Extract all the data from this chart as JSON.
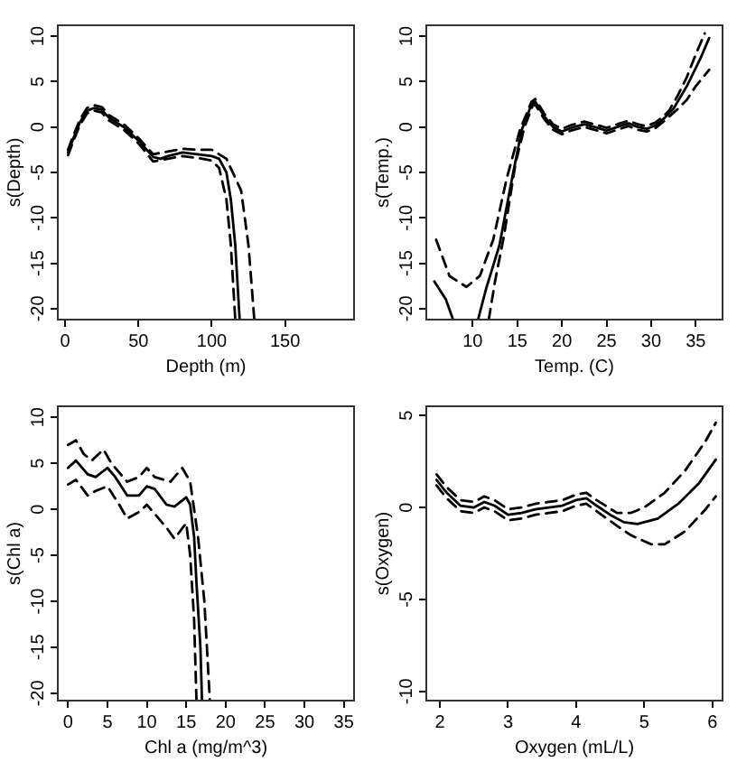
{
  "chart_data": [
    {
      "type": "line",
      "xlabel": "Depth (m)",
      "ylabel": "s(Depth)",
      "xlim": [
        -5,
        197
      ],
      "ylim": [
        -21.2,
        11.2
      ],
      "xticks": [
        0,
        50,
        100,
        150
      ],
      "yticks": [
        -20,
        -15,
        -10,
        -5,
        0,
        5,
        10
      ],
      "grid": false,
      "legend": false,
      "marker": "none",
      "series": [
        {
          "color": "#000000",
          "line_style": "solid",
          "x": [
            2,
            5,
            10,
            15,
            20,
            25,
            30,
            40,
            50,
            60,
            65,
            70,
            80,
            90,
            100,
            105,
            110,
            113,
            116,
            119
          ],
          "values": [
            -2.8,
            -1.5,
            0.5,
            1.8,
            2.1,
            1.9,
            1,
            0,
            -1.5,
            -3.3,
            -3.5,
            -3.2,
            -2.8,
            -3,
            -3.2,
            -3.5,
            -5,
            -8,
            -13,
            -21.2
          ]
        },
        {
          "color": "#000000",
          "line_style": "dashed",
          "x": [
            2,
            5,
            10,
            15,
            20,
            25,
            30,
            40,
            50,
            60,
            70,
            80,
            90,
            100,
            110,
            120,
            125,
            129
          ],
          "values": [
            -2.5,
            -1.2,
            0.8,
            2.1,
            2.4,
            2.2,
            1.3,
            0.3,
            -1.2,
            -3,
            -2.7,
            -2.4,
            -2.5,
            -2.5,
            -3.5,
            -7,
            -13,
            -21.2
          ]
        },
        {
          "color": "#000000",
          "line_style": "dashed",
          "x": [
            2,
            5,
            10,
            15,
            20,
            25,
            30,
            40,
            50,
            60,
            70,
            80,
            90,
            100,
            105,
            110,
            113,
            116
          ],
          "values": [
            -3.1,
            -1.8,
            0.2,
            1.5,
            1.8,
            1.6,
            0.7,
            -0.3,
            -1.8,
            -3.8,
            -3.5,
            -3.2,
            -3.4,
            -3.7,
            -4.5,
            -8,
            -13,
            -21.2
          ]
        }
      ]
    },
    {
      "type": "line",
      "xlabel": "Temp. (C)",
      "ylabel": "s(Temp.)",
      "xlim": [
        4.8,
        38
      ],
      "ylim": [
        -21.2,
        11.2
      ],
      "xticks": [
        10,
        15,
        20,
        25,
        30,
        35
      ],
      "yticks": [
        -20,
        -15,
        -10,
        -5,
        0,
        5,
        10
      ],
      "grid": false,
      "legend": false,
      "marker": "none",
      "series": [
        {
          "color": "#000000",
          "line_style": "solid",
          "x": [
            5.7,
            7,
            7.8
          ],
          "values": [
            -17,
            -19,
            -21.2
          ]
        },
        {
          "color": "#000000",
          "line_style": "solid",
          "x": [
            10.6,
            11.5,
            13,
            14.4,
            15.5,
            16.6,
            17,
            18,
            19,
            20,
            21,
            22.5,
            24,
            25,
            26.5,
            27.5,
            28.5,
            29.5,
            30.5,
            31.5,
            32.5,
            34,
            35.5,
            36.5
          ],
          "values": [
            -21.2,
            -17.8,
            -13,
            -5.7,
            -0.3,
            2.5,
            2.8,
            1.2,
            0,
            -0.5,
            -0.1,
            0.3,
            -0.1,
            -0.4,
            0.1,
            0.4,
            0,
            -0.2,
            0.2,
            1,
            2,
            4.5,
            7.5,
            9.8
          ]
        },
        {
          "color": "#000000",
          "line_style": "dashed",
          "x": [
            5.9,
            7.4,
            9.3,
            10.8,
            12.3,
            13.8,
            15.3,
            16.6,
            17,
            18,
            19,
            20,
            21,
            22.5,
            24,
            25,
            26.5,
            27.5,
            28.5,
            29.5,
            30.5,
            31.5,
            32,
            33,
            34,
            35,
            36
          ],
          "values": [
            -12.4,
            -16.4,
            -17.6,
            -16.4,
            -12.4,
            -5.7,
            -0.3,
            2.8,
            3.1,
            1.5,
            0.3,
            -0.2,
            0.2,
            0.6,
            0.2,
            -0.1,
            0.4,
            0.7,
            0.3,
            0.1,
            0.5,
            1.3,
            1.8,
            3.5,
            5.5,
            8,
            10.3
          ]
        },
        {
          "color": "#000000",
          "line_style": "dashed",
          "x": [
            11.8,
            12.5,
            13.5,
            14.8,
            15.8,
            16.7,
            17,
            18,
            19,
            20,
            21,
            22.5,
            24,
            25,
            26.5,
            27.5,
            28.5,
            29.5,
            30.5,
            31.5,
            33,
            34,
            35,
            36.5
          ],
          "values": [
            -21.2,
            -17,
            -12,
            -4,
            0,
            2.3,
            2.5,
            0.9,
            -0.3,
            -0.8,
            -0.4,
            0,
            -0.4,
            -0.7,
            -0.2,
            0.1,
            -0.3,
            -0.5,
            -0.1,
            0.7,
            2,
            3,
            4.5,
            6.3
          ]
        }
      ]
    },
    {
      "type": "line",
      "xlabel": "Chl a (mg/m^3)",
      "ylabel": "s(Chl a)",
      "xlim": [
        -1.3,
        36.3
      ],
      "ylim": [
        -20.8,
        11.2
      ],
      "xticks": [
        0,
        5,
        10,
        15,
        20,
        25,
        30,
        35
      ],
      "yticks": [
        -20,
        -15,
        -10,
        -5,
        0,
        5,
        10
      ],
      "grid": false,
      "legend": false,
      "marker": "none",
      "series": [
        {
          "color": "#000000",
          "line_style": "solid",
          "x": [
            0,
            1,
            2.5,
            3.5,
            5,
            6,
            7.5,
            9,
            10,
            11,
            12.5,
            13.5,
            15,
            15.5,
            16,
            16.3,
            16.8,
            17
          ],
          "values": [
            4.5,
            5.3,
            3.8,
            3.5,
            4.5,
            3.5,
            1.5,
            1.5,
            2.5,
            2.2,
            0.5,
            0.3,
            1.3,
            0.5,
            -3,
            -8,
            -15,
            -20.8
          ]
        },
        {
          "color": "#000000",
          "line_style": "dashed",
          "x": [
            0,
            1,
            2,
            3,
            4.5,
            5.5,
            7.5,
            9,
            10,
            11,
            13,
            14.5,
            15.5,
            16.5,
            17.3,
            18
          ],
          "values": [
            7,
            7.5,
            6,
            5.3,
            6.5,
            5,
            3,
            3.5,
            4.5,
            3.5,
            3,
            4.5,
            3,
            -3,
            -10,
            -20.8
          ]
        },
        {
          "color": "#000000",
          "line_style": "dashed",
          "x": [
            0,
            1,
            2.5,
            3.5,
            5,
            6.5,
            7.5,
            9,
            10,
            11,
            12.5,
            13.5,
            15,
            15.5,
            16,
            16.3
          ],
          "values": [
            2.7,
            3.2,
            1.5,
            2,
            2.5,
            0.5,
            -1,
            -0.3,
            0.5,
            -0.5,
            -2,
            -3.2,
            -1.5,
            -5,
            -12,
            -20.8
          ]
        }
      ]
    },
    {
      "type": "line",
      "xlabel": "Oxygen (mL/L)",
      "ylabel": "s(Oxygen)",
      "xlim": [
        1.8,
        6.15
      ],
      "ylim": [
        -10.5,
        5.5
      ],
      "xticks": [
        2,
        3,
        4,
        5,
        6
      ],
      "yticks": [
        -10,
        -5,
        0,
        5
      ],
      "grid": false,
      "legend": false,
      "marker": "none",
      "series": [
        {
          "color": "#000000",
          "line_style": "solid",
          "x": [
            1.95,
            2.1,
            2.3,
            2.5,
            2.65,
            2.8,
            3,
            3.2,
            3.4,
            3.6,
            3.8,
            4,
            4.15,
            4.3,
            4.5,
            4.7,
            4.9,
            5.2,
            5.5,
            5.8,
            6.05
          ],
          "values": [
            1.5,
            0.8,
            0.1,
            0,
            0.3,
            0.1,
            -0.4,
            -0.3,
            -0.1,
            0,
            0.1,
            0.4,
            0.5,
            0.1,
            -0.4,
            -0.8,
            -0.9,
            -0.6,
            0.2,
            1.3,
            2.6
          ]
        },
        {
          "color": "#000000",
          "line_style": "dashed",
          "x": [
            1.95,
            2.1,
            2.3,
            2.5,
            2.65,
            2.8,
            3,
            3.2,
            3.4,
            3.6,
            3.8,
            4,
            4.15,
            4.3,
            4.6,
            4.8,
            5,
            5.3,
            5.6,
            5.9,
            6.05
          ],
          "values": [
            1.8,
            1.1,
            0.4,
            0.3,
            0.6,
            0.4,
            -0.1,
            0,
            0.2,
            0.3,
            0.4,
            0.7,
            0.8,
            0.4,
            -0.3,
            -0.3,
            0,
            0.8,
            2,
            3.6,
            4.6
          ]
        },
        {
          "color": "#000000",
          "line_style": "dashed",
          "x": [
            1.95,
            2.1,
            2.3,
            2.5,
            2.65,
            2.8,
            3,
            3.2,
            3.4,
            3.6,
            3.8,
            4,
            4.15,
            4.3,
            4.6,
            4.8,
            5.1,
            5.3,
            5.6,
            5.9,
            6.05
          ],
          "values": [
            1.2,
            0.5,
            -0.2,
            -0.3,
            0,
            -0.2,
            -0.7,
            -0.6,
            -0.4,
            -0.3,
            -0.2,
            0.1,
            0.2,
            -0.2,
            -1,
            -1.5,
            -2,
            -2,
            -1.3,
            -0.1,
            0.6
          ]
        }
      ]
    }
  ]
}
